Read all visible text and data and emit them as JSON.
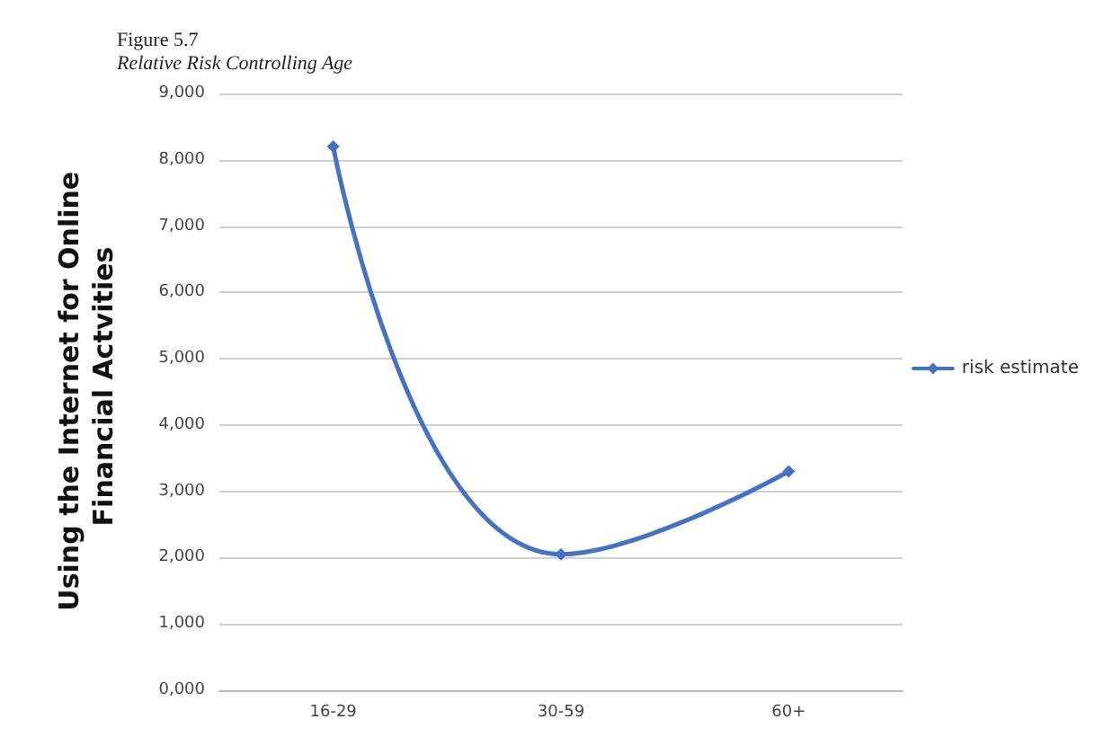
{
  "chart_data": {
    "type": "line",
    "title": "Figure 5.7",
    "subtitle": "Relative Risk Controlling Age",
    "ylabel": "Using the Internet for Online Financial Actvities",
    "categories": [
      "16-29",
      "30-59",
      "60+"
    ],
    "series": [
      {
        "name": "risk estimate",
        "color": "#4472c4",
        "values": [
          8200,
          2050,
          3300
        ]
      }
    ],
    "ylim": [
      0,
      9000
    ],
    "yticks": [
      {
        "value": 0,
        "label": "0,000"
      },
      {
        "value": 1000,
        "label": "1,000"
      },
      {
        "value": 2000,
        "label": "2,000"
      },
      {
        "value": 3000,
        "label": "3,000"
      },
      {
        "value": 4000,
        "label": "4,000"
      },
      {
        "value": 5000,
        "label": "5,000"
      },
      {
        "value": 6000,
        "label": "6,000"
      },
      {
        "value": 7000,
        "label": "7,000"
      },
      {
        "value": 8000,
        "label": "8,000"
      },
      {
        "value": 9000,
        "label": "9,000"
      }
    ],
    "grid": "y",
    "legend": "right",
    "marker": "diamond",
    "line_style": "solid"
  }
}
